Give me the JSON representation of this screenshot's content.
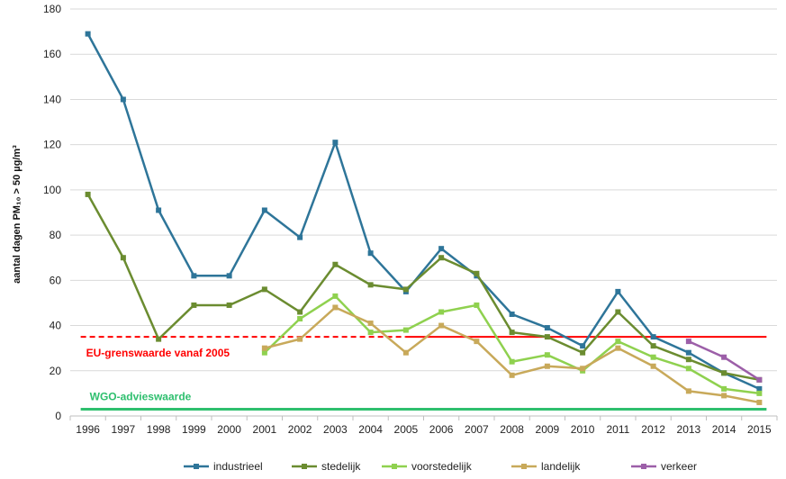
{
  "chart_data": {
    "type": "line",
    "title": "",
    "xlabel": "",
    "ylabel": "aantal dagen PM₁₀ > 50 µg/m³",
    "x": [
      "1996",
      "1997",
      "1998",
      "1999",
      "2000",
      "2001",
      "2002",
      "2003",
      "2004",
      "2005",
      "2006",
      "2007",
      "2008",
      "2009",
      "2010",
      "2011",
      "2012",
      "2013",
      "2014",
      "2015"
    ],
    "ylim": [
      0,
      180
    ],
    "yticks": [
      "0",
      "20",
      "40",
      "60",
      "80",
      "100",
      "120",
      "140",
      "160",
      "180"
    ],
    "grid": "horizontal",
    "legend_position": "bottom",
    "series": [
      {
        "name": "industrieel",
        "color": "#2e7599",
        "values": [
          169,
          140,
          91,
          62,
          62,
          91,
          79,
          121,
          72,
          55,
          74,
          62,
          45,
          39,
          31,
          55,
          35,
          28,
          19,
          12
        ]
      },
      {
        "name": "stedelijk",
        "color": "#6b8c30",
        "values": [
          98,
          70,
          34,
          49,
          49,
          56,
          46,
          67,
          58,
          56,
          70,
          63,
          37,
          35,
          28,
          46,
          31,
          25,
          19,
          16
        ]
      },
      {
        "name": "voorstedelijk",
        "color": "#8fd14f",
        "values": [
          null,
          null,
          null,
          null,
          null,
          28,
          43,
          53,
          37,
          38,
          46,
          49,
          24,
          27,
          20,
          33,
          26,
          21,
          12,
          10
        ]
      },
      {
        "name": "landelijk",
        "color": "#c8a95a",
        "values": [
          null,
          null,
          null,
          null,
          null,
          30,
          34,
          48,
          41,
          28,
          40,
          33,
          18,
          22,
          21,
          30,
          22,
          11,
          9,
          6
        ]
      },
      {
        "name": "verkeer",
        "color": "#9c5fa8",
        "values": [
          null,
          null,
          null,
          null,
          null,
          null,
          null,
          null,
          null,
          null,
          null,
          null,
          null,
          null,
          null,
          null,
          null,
          33,
          26,
          16
        ]
      }
    ],
    "reference_lines": [
      {
        "label": "EU-grenswaarde vanaf 2005",
        "value": 35,
        "color": "#ff0000",
        "dashed_before": "2005"
      },
      {
        "label": "WGO-advieswaarde",
        "value": 3,
        "color": "#2ebf6e"
      }
    ]
  }
}
